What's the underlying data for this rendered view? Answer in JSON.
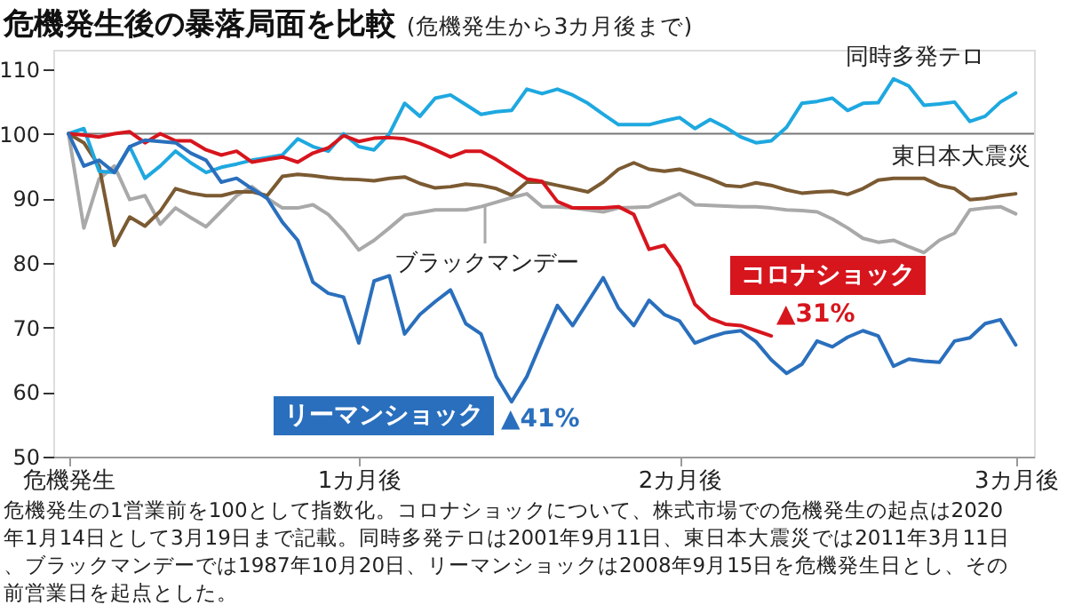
{
  "chart_data": {
    "type": "line",
    "title": "危機発生後の暴落局面を比較",
    "subtitle": "(危機発生から3カ月後まで)",
    "categories": [
      "危機発生",
      null,
      null,
      null,
      null,
      null,
      null,
      null,
      null,
      null,
      null,
      null,
      null,
      null,
      null,
      null,
      null,
      null,
      null,
      "1カ月後",
      null,
      null,
      null,
      null,
      null,
      null,
      null,
      null,
      null,
      null,
      null,
      null,
      null,
      null,
      null,
      null,
      null,
      null,
      null,
      null,
      "2カ月後",
      null,
      null,
      null,
      null,
      null,
      null,
      null,
      null,
      null,
      null,
      null,
      null,
      null,
      null,
      null,
      null,
      null,
      null,
      null,
      null,
      null,
      "3カ月後"
    ],
    "ylim": [
      50,
      113
    ],
    "yticks": [
      50,
      60,
      70,
      80,
      90,
      100,
      110
    ],
    "grid": false,
    "marker": "none",
    "line_style": "solid",
    "ref_lines": [
      {
        "axis": "y",
        "value": 100,
        "color": "#777777"
      }
    ],
    "series": [
      {
        "name": "ブラックマンデー",
        "color": "#a9a9a9",
        "values": [
          100,
          85.4,
          93,
          95,
          89.8,
          90.4,
          86,
          88.5,
          87,
          85.6,
          88,
          90.4,
          91.8,
          90,
          88.5,
          88.5,
          89,
          87.5,
          85,
          82,
          83.5,
          85.4,
          87.4,
          87.8,
          88.2,
          88.2,
          88.2,
          88.7,
          89.4,
          90.1,
          90.7,
          88.7,
          88.7,
          88.5,
          88.2,
          87.9,
          88.5,
          88.6,
          88.7,
          89.7,
          90.7,
          89,
          88.9,
          88.8,
          88.7,
          88.7,
          88.5,
          88.2,
          88.1,
          87.9,
          86.8,
          85.4,
          83.8,
          83.2,
          83.5,
          82.5,
          81.6,
          83.5,
          84.6,
          88.2,
          88.5,
          88.7,
          87.6
        ]
      },
      {
        "name": "東日本大震災",
        "color": "#7b5a32",
        "values": [
          100,
          98.6,
          95,
          82.7,
          87.1,
          85.7,
          88,
          91.5,
          90.8,
          90.4,
          90.4,
          91,
          91,
          90.4,
          93.4,
          93.7,
          93.5,
          93.2,
          93,
          92.9,
          92.7,
          93.1,
          93.3,
          92.3,
          91.6,
          91.8,
          92.2,
          92,
          91.5,
          90.5,
          92.5,
          92.5,
          92,
          91.5,
          91,
          92.5,
          94.5,
          95.5,
          94.5,
          94.2,
          94.5,
          93.8,
          93,
          92,
          91.8,
          92.4,
          92,
          91.3,
          90.8,
          91,
          91.1,
          90.6,
          91.5,
          92.8,
          93.1,
          93.1,
          93.1,
          92,
          91.5,
          89.8,
          90,
          90.4,
          90.7
        ]
      },
      {
        "name": "同時多発テロ",
        "color": "#1ea8e0",
        "values": [
          100,
          100.8,
          94.2,
          94,
          98,
          93.1,
          95,
          97.3,
          95.5,
          94,
          94.8,
          95.3,
          95.9,
          96.3,
          96.7,
          99.2,
          98,
          97.3,
          100,
          98,
          97.5,
          100,
          104.7,
          102.7,
          105.5,
          106,
          104.5,
          103,
          103.4,
          103.6,
          106.9,
          106.2,
          106.9,
          106,
          104.7,
          103,
          101.4,
          101.4,
          101.4,
          102,
          102.5,
          100.8,
          102.2,
          101,
          99.5,
          98.6,
          98.9,
          101,
          104.7,
          105,
          105.5,
          103.6,
          104.7,
          104.8,
          108.5,
          107.4,
          104.4,
          104.6,
          104.9,
          101.9,
          102.7,
          104.9,
          106.3
        ]
      },
      {
        "name": "コロナショック",
        "color": "#d7151d",
        "values": [
          100,
          99.8,
          99.5,
          100,
          100.3,
          98.6,
          100,
          98.9,
          98.9,
          97.5,
          96.7,
          97.3,
          95.6,
          96,
          96.4,
          95.6,
          97,
          97.8,
          99.7,
          98.8,
          99.3,
          99.4,
          99.2,
          98.5,
          97.5,
          96.4,
          97.3,
          97.3,
          96,
          94.5,
          93,
          92.6,
          89.5,
          88.5,
          88.5,
          88.5,
          88.7,
          87.5,
          82.1,
          82.7,
          79.4,
          73.6,
          71.4,
          70.5,
          70.3,
          69.5,
          68.7,
          null,
          null,
          null,
          null,
          null,
          null,
          null,
          null,
          null,
          null,
          null,
          null,
          null,
          null,
          null,
          null
        ]
      },
      {
        "name": "リーマンショック",
        "color": "#2a6fbd",
        "values": [
          100,
          95,
          95.9,
          94,
          98,
          99,
          98.8,
          98.6,
          97,
          95.9,
          92.5,
          93.1,
          91.5,
          90,
          86.3,
          83.5,
          77,
          75.3,
          74.7,
          67.6,
          77.2,
          78,
          69,
          72,
          74,
          75.8,
          70.6,
          69,
          62.4,
          58.5,
          62.4,
          68,
          73.4,
          70.3,
          74,
          77.7,
          73,
          70.3,
          74.2,
          72,
          71,
          67.6,
          68.5,
          69.2,
          69.5,
          67.8,
          65,
          62.9,
          64.3,
          67.9,
          67,
          68.5,
          69.5,
          68.7,
          64,
          65.1,
          64.8,
          64.6,
          67.9,
          68.4,
          70.6,
          71.2,
          67.3
        ]
      }
    ],
    "annotations": [
      "▲31%",
      "▲41%",
      "危機発生の1営業前を100として指数化。コロナショックについて、株式市場での危機発生の起点は2020年1月14日として3月19日まで記載。同時多発テロは2001年9月11日、東日本大震災では2011年3月11日、ブラックマンデーでは1987年10月20日、リーマンショックは2008年9月15日を危機発生日とし、その前営業日を起点とした。"
    ]
  }
}
